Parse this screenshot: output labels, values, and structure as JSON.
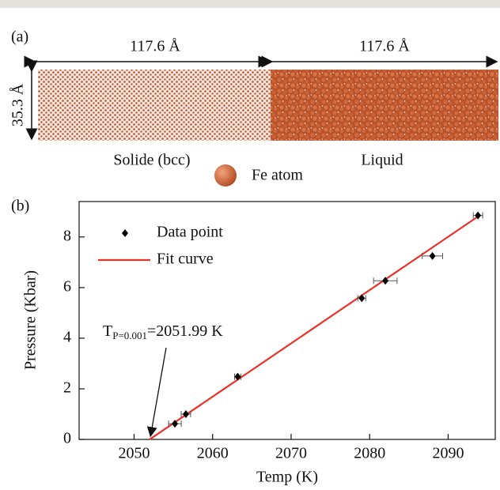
{
  "panel_a": {
    "panel_label": "(a)",
    "width_left": "117.6 Å",
    "width_right": "117.6 Å",
    "height": "35.3 Å",
    "label_left": "Solide (bcc)",
    "label_right": "Liquid",
    "legend": "Fe atom"
  },
  "chart_data": {
    "type": "scatter",
    "panel_label": "(b)",
    "x_label": "Temp (K)",
    "y_label": "Pressure (Kbar)",
    "xlim": [
      2043,
      2096
    ],
    "ylim": [
      0,
      9.4
    ],
    "xticks": [
      2050,
      2060,
      2070,
      2080,
      2090
    ],
    "yticks": [
      0,
      2,
      4,
      6,
      8
    ],
    "annotation": {
      "text": "T",
      "subscript": "P=0.001",
      "suffix": "=2051.99 K"
    },
    "series": [
      {
        "name": "Data point",
        "type": "scatter",
        "color": "#000000",
        "x": [
          2055.2,
          2056.6,
          2063.2,
          2079.0,
          2082.0,
          2088.0,
          2093.8
        ],
        "y": [
          0.62,
          1.0,
          2.48,
          5.58,
          6.27,
          7.25,
          8.85
        ],
        "xerr": [
          0.8,
          0.6,
          0.4,
          0.5,
          1.5,
          1.3,
          0.6
        ]
      },
      {
        "name": "Fit curve",
        "type": "line",
        "color": "#e8322a",
        "x": [
          2051.99,
          2094.0
        ],
        "y": [
          0.001,
          8.85
        ]
      }
    ]
  }
}
